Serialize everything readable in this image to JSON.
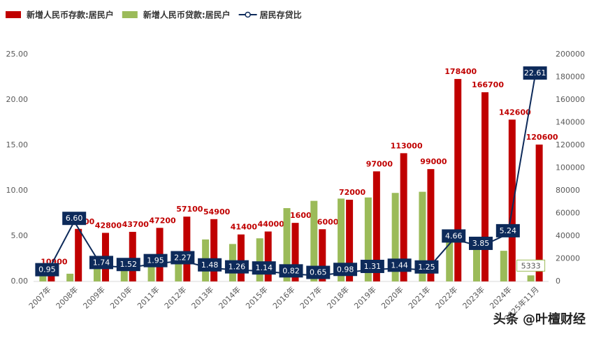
{
  "chart_data": {
    "type": "bar-line",
    "categories": [
      "2007年",
      "2008年",
      "2009年",
      "2010年",
      "2011年",
      "2012年",
      "2013年",
      "2014年",
      "2015年",
      "2016年",
      "2017年",
      "2018年",
      "2019年",
      "2020年",
      "2021年",
      "2022年",
      "2023年",
      "2024年",
      "2025年11月"
    ],
    "series": [
      {
        "name": "新增人民币存款:居民户",
        "color": "#c00000",
        "axis": "y2",
        "kind": "bar",
        "values": [
          10900,
          46300,
          42800,
          43700,
          47200,
          57100,
          54900,
          41400,
          44000,
          51600,
          46000,
          72000,
          97000,
          113000,
          99000,
          178400,
          166700,
          142600,
          120600
        ]
      },
      {
        "name": "新增人民币贷款:居民户",
        "color": "#9bbb59",
        "axis": "y2",
        "kind": "bar",
        "values": [
          12300,
          6800,
          20000,
          16000,
          20000,
          23000,
          37000,
          33000,
          38000,
          64600,
          71000,
          73000,
          74000,
          78000,
          79000,
          38000,
          35000,
          27000,
          5333
        ],
        "value_labels": [
          null,
          null,
          null,
          null,
          null,
          null,
          null,
          null,
          null,
          null,
          null,
          null,
          null,
          null,
          null,
          null,
          null,
          null,
          "5333"
        ]
      },
      {
        "name": "居民存贷比",
        "color": "#0d2a5a",
        "axis": "y",
        "kind": "line",
        "values": [
          0.95,
          6.6,
          1.74,
          1.52,
          1.95,
          2.27,
          1.48,
          1.26,
          1.14,
          0.82,
          0.65,
          0.98,
          1.31,
          1.44,
          1.25,
          4.66,
          3.85,
          5.24,
          22.61
        ],
        "value_labels": [
          "0.95",
          "6.60",
          "1.74",
          "1.52",
          "1.95",
          "2.27",
          "1.48",
          "1.26",
          "1.14",
          "0.82",
          "0.65",
          "0.98",
          "1.31",
          "1.44",
          "1.25",
          "4.66",
          "3.85",
          "5.24",
          "22.61"
        ]
      }
    ],
    "ylim": [
      0,
      25
    ],
    "yticks": [
      {
        "value": 0,
        "label": "0.00"
      },
      {
        "value": 5,
        "label": "5.00"
      },
      {
        "value": 10,
        "label": "10.00"
      },
      {
        "value": 15,
        "label": "15.00"
      },
      {
        "value": 20,
        "label": "20.00"
      },
      {
        "value": 25,
        "label": "25.00"
      }
    ],
    "y2lim": [
      0,
      200000
    ],
    "y2ticks": [
      0,
      20000,
      40000,
      60000,
      80000,
      100000,
      120000,
      140000,
      160000,
      180000,
      200000
    ],
    "grid": false,
    "legend": "top",
    "watermark": "头条 @叶檀财经"
  }
}
